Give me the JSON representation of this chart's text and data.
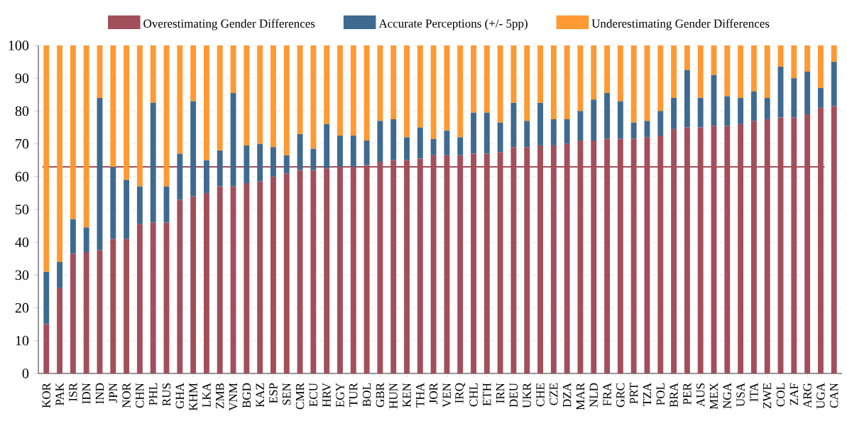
{
  "chart_data": {
    "type": "bar",
    "stacked": true,
    "categories": [
      "KOR",
      "PAK",
      "ISR",
      "IDN",
      "IND",
      "JPN",
      "NOR",
      "CHN",
      "PHL",
      "RUS",
      "GHA",
      "KHM",
      "LKA",
      "ZMB",
      "VNM",
      "BGD",
      "KAZ",
      "ESP",
      "SEN",
      "CMR",
      "ECU",
      "HRV",
      "EGY",
      "TUR",
      "BOL",
      "GBR",
      "HUN",
      "KEN",
      "THA",
      "JOR",
      "VEN",
      "IRQ",
      "CHL",
      "ETH",
      "IRN",
      "DEU",
      "UKR",
      "CHE",
      "CZE",
      "DZA",
      "MAR",
      "NLD",
      "FRA",
      "GRC",
      "PRT",
      "TZA",
      "POL",
      "BRA",
      "PER",
      "AUS",
      "MEX",
      "NGA",
      "USA",
      "ITA",
      "ZWE",
      "COL",
      "ZAF",
      "ARG",
      "UGA",
      "CAN"
    ],
    "series": [
      {
        "name": "Overestimating Gender Differences",
        "color": "#a24f5b",
        "values": [
          15,
          26,
          36.5,
          37,
          37.5,
          41,
          41,
          45.5,
          46,
          46,
          53,
          54,
          55,
          57,
          57,
          58,
          58.5,
          60,
          61,
          62,
          62,
          62.5,
          63,
          63,
          63.5,
          64.5,
          65,
          65,
          65.5,
          66.5,
          66.5,
          66.5,
          67,
          67,
          67.5,
          69,
          69,
          69.5,
          69.5,
          70,
          71,
          71,
          71.5,
          71.5,
          71.5,
          72,
          72.5,
          74.5,
          75,
          75,
          75.5,
          75.5,
          76,
          77,
          77.5,
          78,
          78,
          79,
          81,
          81.5
        ]
      },
      {
        "name": "Accurate Perceptions (+/- 5pp)",
        "color": "#3f6a90",
        "values": [
          16,
          8,
          10.5,
          7.5,
          46.5,
          22,
          18,
          11.5,
          36.5,
          11,
          14,
          29,
          10,
          11,
          28.5,
          11.5,
          11.5,
          9,
          5.5,
          11,
          6.5,
          13.5,
          9.5,
          9.5,
          7.5,
          12.5,
          12.5,
          7,
          9.5,
          5,
          7.5,
          5.5,
          12.5,
          12.5,
          9,
          13.5,
          8,
          13,
          8,
          7.5,
          9,
          12.5,
          14,
          11.5,
          5,
          5,
          7.5,
          9.5,
          17.5,
          9,
          15.5,
          9,
          8,
          9,
          6.5,
          15.5,
          12,
          13,
          6,
          13.5
        ]
      },
      {
        "name": "Underestimating Gender Differences",
        "color": "#ff9933",
        "values": [
          69,
          66,
          53,
          55.5,
          16,
          37,
          41,
          43,
          17.5,
          43,
          33,
          17,
          35,
          32,
          14.5,
          30.5,
          30,
          31,
          33.5,
          27,
          31.5,
          24,
          27.5,
          27.5,
          29,
          23,
          22.5,
          28,
          25,
          28.5,
          26,
          28,
          20.5,
          20.5,
          23.5,
          17.5,
          23,
          17.5,
          22.5,
          22.5,
          20,
          16.5,
          14.5,
          17,
          23.5,
          23,
          20,
          16,
          7.5,
          16,
          9,
          15.5,
          16,
          14,
          16,
          6.5,
          10,
          8,
          13,
          5
        ]
      }
    ],
    "ylim": [
      0,
      100
    ],
    "yticks": [
      0,
      10,
      20,
      30,
      40,
      50,
      60,
      70,
      80,
      90,
      100
    ],
    "ref_lines": [
      {
        "axis": "y",
        "value": 63,
        "color": "#a24f5b"
      }
    ],
    "grid": "y",
    "legend": "top"
  }
}
